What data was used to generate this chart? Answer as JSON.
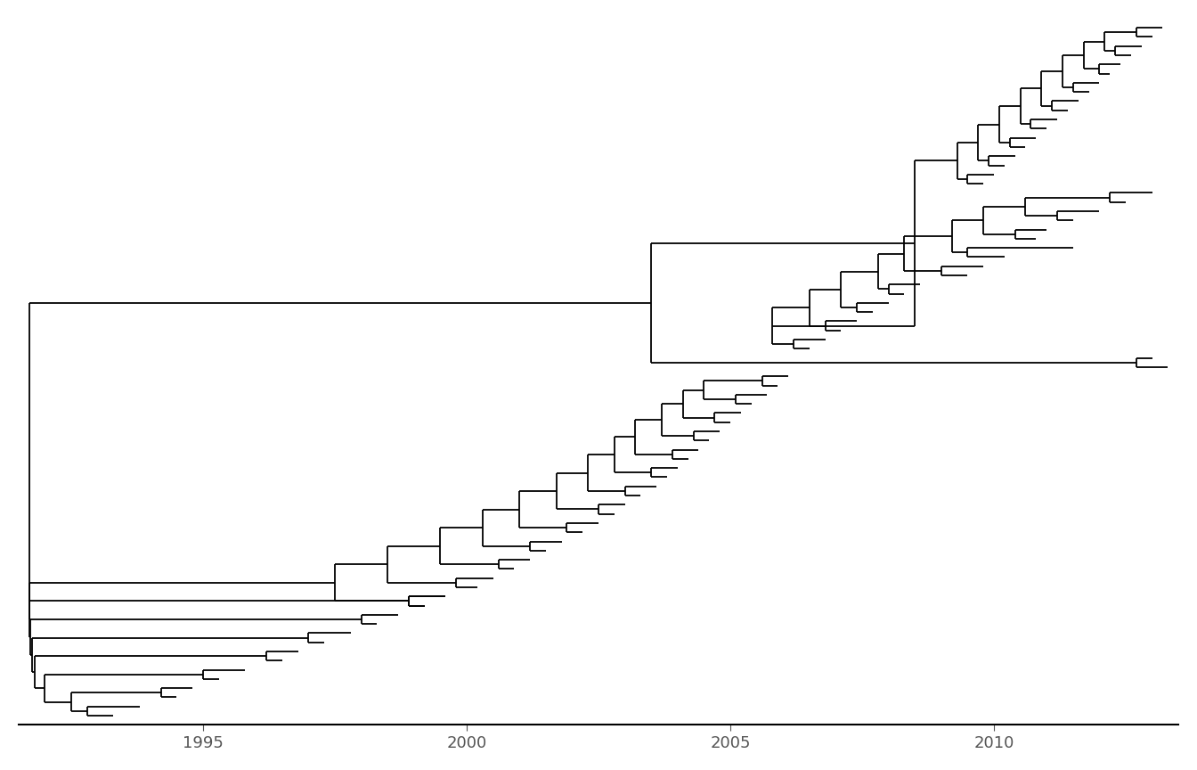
{
  "xlim": [
    1991.5,
    2013.5
  ],
  "ylim": [
    -1,
    76
  ],
  "xticks": [
    1995,
    2000,
    2005,
    2010
  ],
  "background_color": "#ffffff",
  "line_color": "#000000",
  "line_width": 1.3,
  "tick_fontsize": 13
}
